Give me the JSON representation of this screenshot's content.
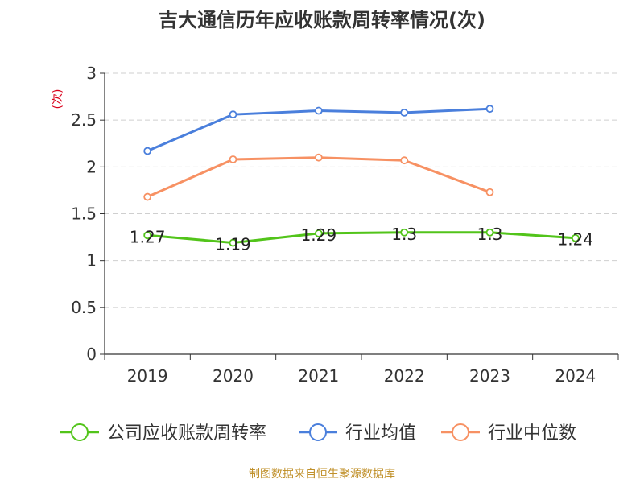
{
  "chart_data": {
    "type": "line",
    "title": "吉大通信历年应收账款周转率情况(次)",
    "ylabel": "(次)",
    "categories": [
      "2019",
      "2020",
      "2021",
      "2022",
      "2023",
      "2024"
    ],
    "ylim": [
      0,
      3
    ],
    "yticks": [
      "0",
      "0.5",
      "1",
      "1.5",
      "2",
      "2.5",
      "3"
    ],
    "grid": true,
    "legend_position": "bottom",
    "series": [
      {
        "name": "公司应收账款周转率",
        "color": "#52c41a",
        "values": [
          1.27,
          1.19,
          1.29,
          1.3,
          1.3,
          1.24
        ],
        "labels": [
          "1.27",
          "1.19",
          "1.29",
          "1.3",
          "1.3",
          "1.24"
        ]
      },
      {
        "name": "行业均值",
        "color": "#4a7fdc",
        "values": [
          2.17,
          2.56,
          2.6,
          2.58,
          2.62,
          null
        ]
      },
      {
        "name": "行业中位数",
        "color": "#f79163",
        "values": [
          1.68,
          2.08,
          2.1,
          2.07,
          1.73,
          null
        ]
      }
    ]
  },
  "source": "制图数据来自恒生聚源数据库",
  "colors": {
    "source_text": "#c0902a",
    "ylabel": "#d9001b"
  }
}
